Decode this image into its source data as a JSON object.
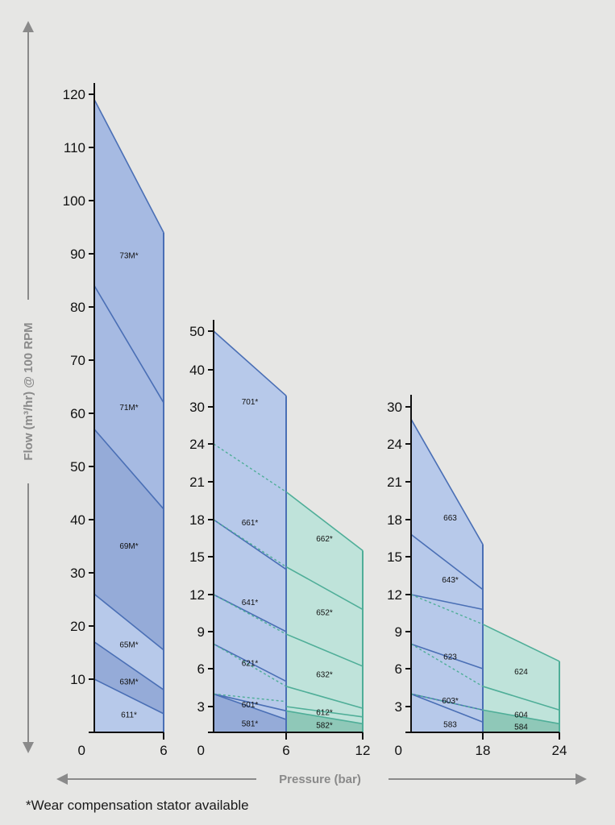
{
  "y_axis_label": "Flow (m³/hr) @ 100 RPM",
  "x_axis_label": "Pressure (bar)",
  "footnote": "*Wear compensation stator available",
  "colors": {
    "blue_fill_light": "#b7c9ea",
    "blue_fill_mid": "#a6bae2",
    "blue_fill_dark": "#95abd8",
    "blue_line": "#4a6fb5",
    "green_fill_light": "#bfe3da",
    "green_fill_dark": "#8fc8b8",
    "green_line": "#4fae98",
    "axis": "#111111",
    "background": "#e6e6e4",
    "arrow": "#8a8a8a"
  },
  "chart_data": [
    {
      "type": "area",
      "yticks": [
        0,
        10,
        20,
        30,
        40,
        50,
        60,
        70,
        80,
        90,
        100,
        110,
        120
      ],
      "ylim": [
        0,
        120
      ],
      "xticks": [
        0,
        6
      ],
      "xlim": [
        0,
        6
      ],
      "series": [
        {
          "name": "611*",
          "values": [
            10,
            3.5
          ]
        },
        {
          "name": "63M*",
          "values": [
            17,
            8
          ]
        },
        {
          "name": "65M*",
          "values": [
            26,
            15.5
          ]
        },
        {
          "name": "69M*",
          "values": [
            57,
            42
          ]
        },
        {
          "name": "71M*",
          "values": [
            84,
            62
          ]
        },
        {
          "name": "73M*",
          "values": [
            119,
            94
          ]
        }
      ]
    },
    {
      "type": "area",
      "yticks": [
        0,
        3,
        6,
        9,
        12,
        15,
        18,
        21,
        24,
        30,
        40,
        50
      ],
      "ytick_labels": [
        "0",
        "3",
        "6",
        "9",
        "12",
        "15",
        "18",
        "21",
        "24",
        "30",
        "40",
        "50"
      ],
      "xticks": [
        0,
        6,
        12
      ],
      "xlim": [
        0,
        12
      ],
      "series": [
        {
          "name": "581*",
          "values": [
            4,
            1.5
          ],
          "stage": 1
        },
        {
          "name": "582*",
          "values": [
            3,
            1.5
          ],
          "stage": 2
        },
        {
          "name": "601*",
          "values": [
            4,
            2.5
          ],
          "stage": 1
        },
        {
          "name": "612*",
          "values": [
            4,
            2.5
          ],
          "stage": 2
        },
        {
          "name": "621*",
          "values": [
            8,
            5
          ],
          "stage": 1
        },
        {
          "name": "632*",
          "values": [
            8,
            5
          ],
          "stage": 2
        },
        {
          "name": "641*",
          "values": [
            12,
            9
          ],
          "stage": 1
        },
        {
          "name": "652*",
          "values": [
            12,
            9
          ],
          "stage": 2
        },
        {
          "name": "661*",
          "values": [
            18,
            14
          ],
          "stage": 1
        },
        {
          "name": "662*",
          "values": [
            18,
            14
          ],
          "stage": 2
        },
        {
          "name": "701*",
          "values": [
            50,
            33
          ],
          "stage": 1
        }
      ]
    },
    {
      "type": "area",
      "yticks": [
        0,
        3,
        6,
        9,
        12,
        15,
        18,
        21,
        24,
        30
      ],
      "xticks": [
        0,
        18,
        24
      ],
      "xlim": [
        0,
        24
      ],
      "series": [
        {
          "name": "583",
          "values": [
            4,
            2
          ],
          "stage": 1
        },
        {
          "name": "584",
          "values": [
            4,
            2
          ],
          "stage": 2
        },
        {
          "name": "603*",
          "values": [
            4,
            2.5
          ],
          "stage": 1
        },
        {
          "name": "604",
          "values": [
            4,
            2.5
          ],
          "stage": 2
        },
        {
          "name": "623",
          "values": [
            8,
            5
          ],
          "stage": 1
        },
        {
          "name": "624",
          "values": [
            8,
            5
          ],
          "stage": 2
        },
        {
          "name": "643*",
          "values": [
            12,
            9
          ],
          "stage": 1
        },
        {
          "name": "663",
          "values": [
            18,
            14
          ],
          "stage": 1
        }
      ]
    }
  ]
}
